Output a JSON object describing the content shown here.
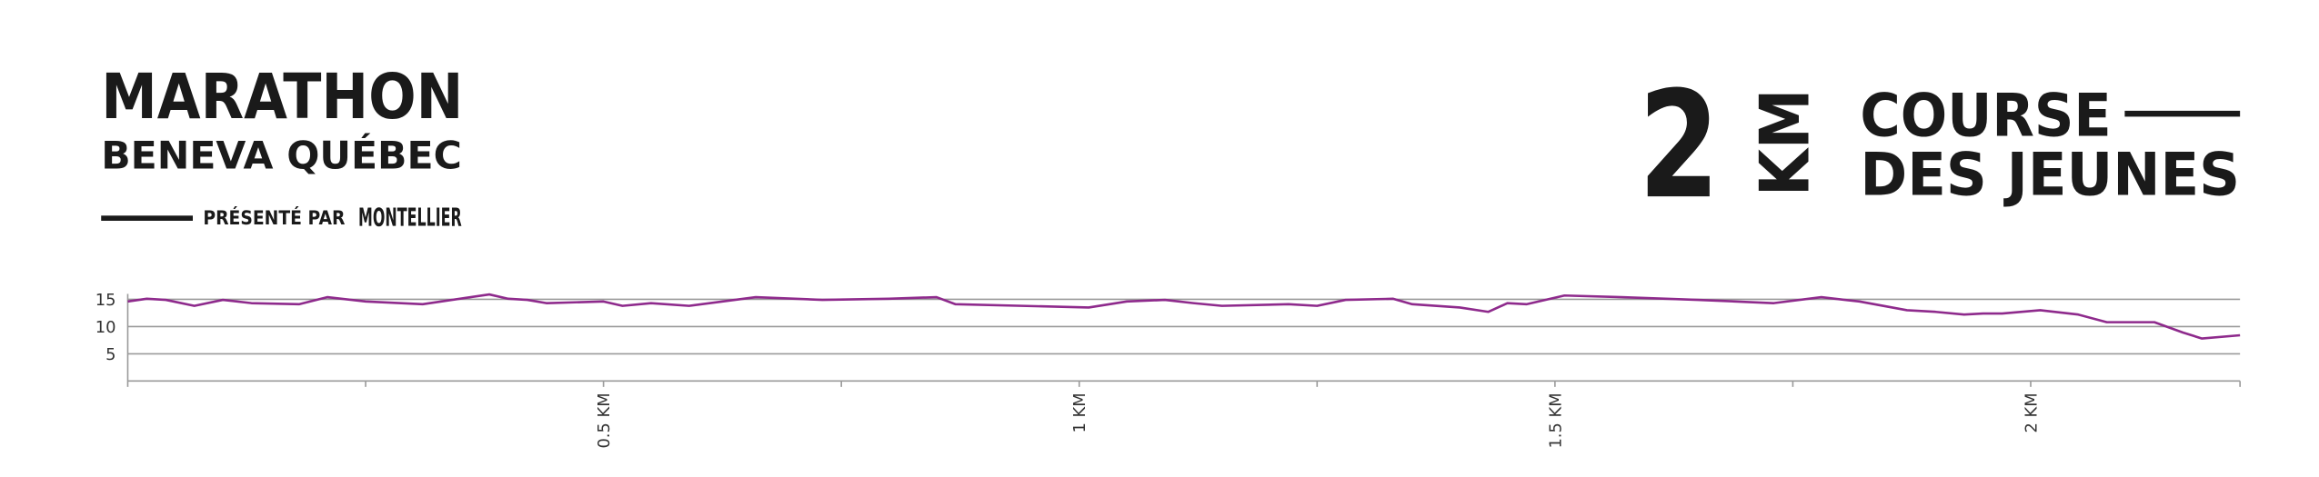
{
  "header": {
    "title": "MARATHON",
    "subtitle": "BENEVA QUÉBEC",
    "presented": "PRÉSENTÉ PAR",
    "sponsor": "MONTELLIER",
    "distance": "2",
    "unit": "KM",
    "race_line1": "COURSE",
    "race_line2": "DES JEUNES"
  },
  "chart_data": {
    "type": "line",
    "x": [
      0,
      0.02,
      0.04,
      0.07,
      0.1,
      0.13,
      0.18,
      0.21,
      0.25,
      0.31,
      0.38,
      0.4,
      0.42,
      0.44,
      0.5,
      0.52,
      0.55,
      0.59,
      0.66,
      0.73,
      0.8,
      0.85,
      0.87,
      0.94,
      1.01,
      1.05,
      1.09,
      1.12,
      1.15,
      1.22,
      1.25,
      1.28,
      1.33,
      1.35,
      1.4,
      1.43,
      1.45,
      1.47,
      1.51,
      1.57,
      1.65,
      1.73,
      1.78,
      1.82,
      1.87,
      1.9,
      1.93,
      1.95,
      1.97,
      2.01,
      2.05,
      2.08,
      2.13,
      2.16,
      2.18,
      2.22
    ],
    "values": [
      14.6,
      15.1,
      14.9,
      13.8,
      14.9,
      14.3,
      14.1,
      15.4,
      14.6,
      14.1,
      15.9,
      15.1,
      14.9,
      14.3,
      14.6,
      13.8,
      14.3,
      13.8,
      15.4,
      14.9,
      15.1,
      15.4,
      14.1,
      13.8,
      13.5,
      14.6,
      14.9,
      14.3,
      13.8,
      14.1,
      13.8,
      14.9,
      15.1,
      14.1,
      13.5,
      12.7,
      14.3,
      14.1,
      15.7,
      15.4,
      14.9,
      14.3,
      15.4,
      14.6,
      13.0,
      12.7,
      12.2,
      12.4,
      12.4,
      13.0,
      12.2,
      10.8,
      10.8,
      8.9,
      7.8,
      8.4
    ],
    "color": "#8e2a8c",
    "xlim": [
      0,
      2.22
    ],
    "xticks": [
      {
        "value": 0.5,
        "label": "0.5 KM"
      },
      {
        "value": 1,
        "label": "1 KM"
      },
      {
        "value": 1.5,
        "label": "1.5 KM"
      },
      {
        "value": 2,
        "label": "2 KM"
      }
    ],
    "xminorticks": [
      0.25,
      0.75,
      1.25,
      1.75
    ],
    "ylim": [
      0,
      16
    ],
    "yticks": [
      15,
      10,
      5
    ],
    "grid": true
  }
}
